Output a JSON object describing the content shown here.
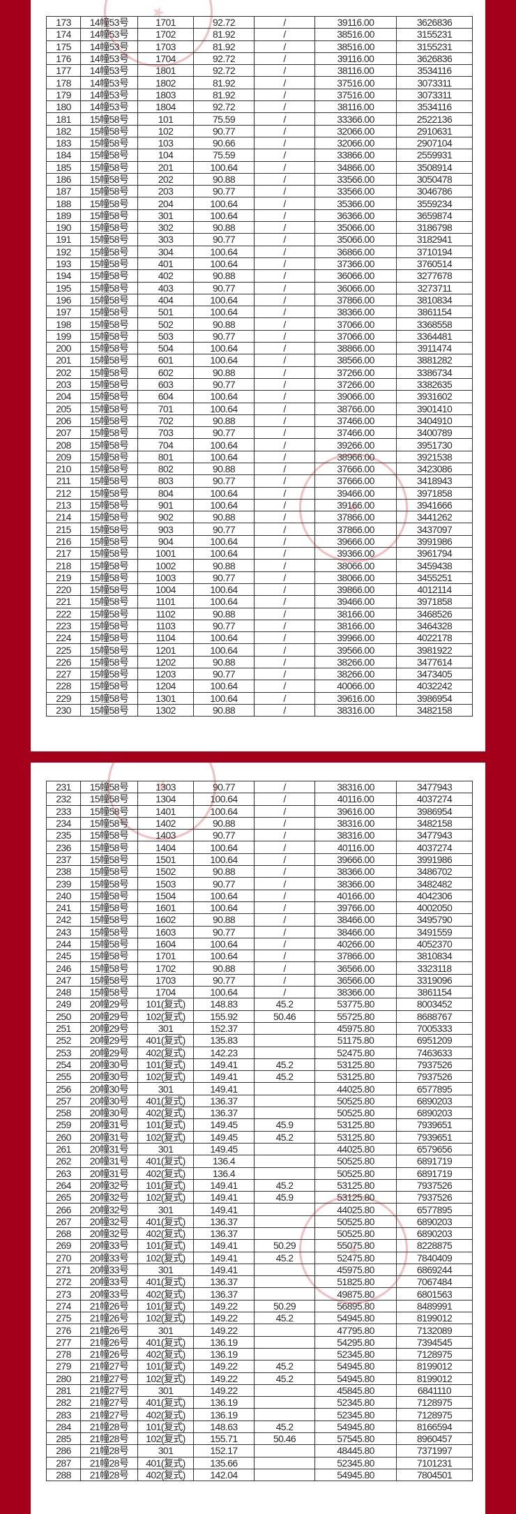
{
  "colors": {
    "background": "#a5001b",
    "page": "#ffffff",
    "stamp": "#d74650"
  },
  "pages": [
    {
      "rows": [
        [
          "173",
          "14幢53号",
          "1701",
          "92.72",
          "/",
          "39116.00",
          "3626836"
        ],
        [
          "174",
          "14幢53号",
          "1702",
          "81.92",
          "/",
          "38516.00",
          "3155231"
        ],
        [
          "175",
          "14幢53号",
          "1703",
          "81.92",
          "/",
          "38516.00",
          "3155231"
        ],
        [
          "176",
          "14幢53号",
          "1704",
          "92.72",
          "/",
          "39116.00",
          "3626836"
        ],
        [
          "177",
          "14幢53号",
          "1801",
          "92.72",
          "/",
          "38116.00",
          "3534116"
        ],
        [
          "178",
          "14幢53号",
          "1802",
          "81.92",
          "/",
          "37516.00",
          "3073311"
        ],
        [
          "179",
          "14幢53号",
          "1803",
          "81.92",
          "/",
          "37516.00",
          "3073311"
        ],
        [
          "180",
          "14幢53号",
          "1804",
          "92.72",
          "/",
          "38116.00",
          "3534116"
        ],
        [
          "181",
          "15幢58号",
          "101",
          "75.59",
          "/",
          "33366.00",
          "2522136"
        ],
        [
          "182",
          "15幢58号",
          "102",
          "90.77",
          "/",
          "32066.00",
          "2910631"
        ],
        [
          "183",
          "15幢58号",
          "103",
          "90.66",
          "/",
          "32066.00",
          "2907104"
        ],
        [
          "184",
          "15幢58号",
          "104",
          "75.59",
          "/",
          "33866.00",
          "2559931"
        ],
        [
          "185",
          "15幢58号",
          "201",
          "100.64",
          "/",
          "34866.00",
          "3508914"
        ],
        [
          "186",
          "15幢58号",
          "202",
          "90.88",
          "/",
          "33566.00",
          "3050478"
        ],
        [
          "187",
          "15幢58号",
          "203",
          "90.77",
          "/",
          "33566.00",
          "3046786"
        ],
        [
          "188",
          "15幢58号",
          "204",
          "100.64",
          "/",
          "35366.00",
          "3559234"
        ],
        [
          "189",
          "15幢58号",
          "301",
          "100.64",
          "/",
          "36366.00",
          "3659874"
        ],
        [
          "190",
          "15幢58号",
          "302",
          "90.88",
          "/",
          "35066.00",
          "3186798"
        ],
        [
          "191",
          "15幢58号",
          "303",
          "90.77",
          "/",
          "35066.00",
          "3182941"
        ],
        [
          "192",
          "15幢58号",
          "304",
          "100.64",
          "/",
          "36866.00",
          "3710194"
        ],
        [
          "193",
          "15幢58号",
          "401",
          "100.64",
          "/",
          "37366.00",
          "3760514"
        ],
        [
          "194",
          "15幢58号",
          "402",
          "90.88",
          "/",
          "36066.00",
          "3277678"
        ],
        [
          "195",
          "15幢58号",
          "403",
          "90.77",
          "/",
          "36066.00",
          "3273711"
        ],
        [
          "196",
          "15幢58号",
          "404",
          "100.64",
          "/",
          "37866.00",
          "3810834"
        ],
        [
          "197",
          "15幢58号",
          "501",
          "100.64",
          "/",
          "38366.00",
          "3861154"
        ],
        [
          "198",
          "15幢58号",
          "502",
          "90.88",
          "/",
          "37066.00",
          "3368558"
        ],
        [
          "199",
          "15幢58号",
          "503",
          "90.77",
          "/",
          "37066.00",
          "3364481"
        ],
        [
          "200",
          "15幢58号",
          "504",
          "100.64",
          "/",
          "38866.00",
          "3911474"
        ],
        [
          "201",
          "15幢58号",
          "601",
          "100.64",
          "/",
          "38566.00",
          "3881282"
        ],
        [
          "202",
          "15幢58号",
          "602",
          "90.88",
          "/",
          "37266.00",
          "3386734"
        ],
        [
          "203",
          "15幢58号",
          "603",
          "90.77",
          "/",
          "37266.00",
          "3382635"
        ],
        [
          "204",
          "15幢58号",
          "604",
          "100.64",
          "/",
          "39066.00",
          "3931602"
        ],
        [
          "205",
          "15幢58号",
          "701",
          "100.64",
          "/",
          "38766.00",
          "3901410"
        ],
        [
          "206",
          "15幢58号",
          "702",
          "90.88",
          "/",
          "37466.00",
          "3404910"
        ],
        [
          "207",
          "15幢58号",
          "703",
          "90.77",
          "/",
          "37466.00",
          "3400789"
        ],
        [
          "208",
          "15幢58号",
          "704",
          "100.64",
          "/",
          "39266.00",
          "3951730"
        ],
        [
          "209",
          "15幢58号",
          "801",
          "100.64",
          "/",
          "38966.00",
          "3921538"
        ],
        [
          "210",
          "15幢58号",
          "802",
          "90.88",
          "/",
          "37666.00",
          "3423086"
        ],
        [
          "211",
          "15幢58号",
          "803",
          "90.77",
          "/",
          "37666.00",
          "3418943"
        ],
        [
          "212",
          "15幢58号",
          "804",
          "100.64",
          "/",
          "39466.00",
          "3971858"
        ],
        [
          "213",
          "15幢58号",
          "901",
          "100.64",
          "/",
          "39166.00",
          "3941666"
        ],
        [
          "214",
          "15幢58号",
          "902",
          "90.88",
          "/",
          "37866.00",
          "3441262"
        ],
        [
          "215",
          "15幢58号",
          "903",
          "90.77",
          "/",
          "37866.00",
          "3437097"
        ],
        [
          "216",
          "15幢58号",
          "904",
          "100.64",
          "/",
          "39666.00",
          "3991986"
        ],
        [
          "217",
          "15幢58号",
          "1001",
          "100.64",
          "/",
          "39366.00",
          "3961794"
        ],
        [
          "218",
          "15幢58号",
          "1002",
          "90.88",
          "/",
          "38066.00",
          "3459438"
        ],
        [
          "219",
          "15幢58号",
          "1003",
          "90.77",
          "/",
          "38066.00",
          "3455251"
        ],
        [
          "220",
          "15幢58号",
          "1004",
          "100.64",
          "/",
          "39866.00",
          "4012114"
        ],
        [
          "221",
          "15幢58号",
          "1101",
          "100.64",
          "/",
          "39466.00",
          "3971858"
        ],
        [
          "222",
          "15幢58号",
          "1102",
          "90.88",
          "/",
          "38166.00",
          "3468526"
        ],
        [
          "223",
          "15幢58号",
          "1103",
          "90.77",
          "/",
          "38166.00",
          "3464328"
        ],
        [
          "224",
          "15幢58号",
          "1104",
          "100.64",
          "/",
          "39966.00",
          "4022178"
        ],
        [
          "225",
          "15幢58号",
          "1201",
          "100.64",
          "/",
          "39566.00",
          "3981922"
        ],
        [
          "226",
          "15幢58号",
          "1202",
          "90.88",
          "/",
          "38266.00",
          "3477614"
        ],
        [
          "227",
          "15幢58号",
          "1203",
          "90.77",
          "/",
          "38266.00",
          "3473405"
        ],
        [
          "228",
          "15幢58号",
          "1204",
          "100.64",
          "/",
          "40066.00",
          "4032242"
        ],
        [
          "229",
          "15幢58号",
          "1301",
          "100.64",
          "/",
          "39616.00",
          "3986954"
        ],
        [
          "230",
          "15幢58号",
          "1302",
          "90.88",
          "/",
          "38316.00",
          "3482158"
        ]
      ]
    },
    {
      "rows": [
        [
          "231",
          "15幢58号",
          "1303",
          "90.77",
          "/",
          "38316.00",
          "3477943"
        ],
        [
          "232",
          "15幢58号",
          "1304",
          "100.64",
          "/",
          "40116.00",
          "4037274"
        ],
        [
          "233",
          "15幢58号",
          "1401",
          "100.64",
          "/",
          "39616.00",
          "3986954"
        ],
        [
          "234",
          "15幢58号",
          "1402",
          "90.88",
          "/",
          "38316.00",
          "3482158"
        ],
        [
          "235",
          "15幢58号",
          "1403",
          "90.77",
          "/",
          "38316.00",
          "3477943"
        ],
        [
          "236",
          "15幢58号",
          "1404",
          "100.64",
          "/",
          "40116.00",
          "4037274"
        ],
        [
          "237",
          "15幢58号",
          "1501",
          "100.64",
          "/",
          "39666.00",
          "3991986"
        ],
        [
          "238",
          "15幢58号",
          "1502",
          "90.88",
          "/",
          "38366.00",
          "3486702"
        ],
        [
          "239",
          "15幢58号",
          "1503",
          "90.77",
          "/",
          "38366.00",
          "3482482"
        ],
        [
          "240",
          "15幢58号",
          "1504",
          "100.64",
          "/",
          "40166.00",
          "4042306"
        ],
        [
          "241",
          "15幢58号",
          "1601",
          "100.64",
          "/",
          "39766.00",
          "4002050"
        ],
        [
          "242",
          "15幢58号",
          "1602",
          "90.88",
          "/",
          "38466.00",
          "3495790"
        ],
        [
          "243",
          "15幢58号",
          "1603",
          "90.77",
          "/",
          "38466.00",
          "3491559"
        ],
        [
          "244",
          "15幢58号",
          "1604",
          "100.64",
          "/",
          "40266.00",
          "4052370"
        ],
        [
          "245",
          "15幢58号",
          "1701",
          "100.64",
          "/",
          "37866.00",
          "3810834"
        ],
        [
          "246",
          "15幢58号",
          "1702",
          "90.88",
          "/",
          "36566.00",
          "3323118"
        ],
        [
          "247",
          "15幢58号",
          "1703",
          "90.77",
          "/",
          "36566.00",
          "3319096"
        ],
        [
          "248",
          "15幢58号",
          "1704",
          "100.64",
          "/",
          "38366.00",
          "3861154"
        ],
        [
          "249",
          "20幢29号",
          "101(复式)",
          "148.83",
          "45.2",
          "53775.80",
          "8003452"
        ],
        [
          "250",
          "20幢29号",
          "102(复式)",
          "155.92",
          "50.46",
          "55725.80",
          "8688767"
        ],
        [
          "251",
          "20幢29号",
          "301",
          "152.37",
          "",
          "45975.80",
          "7005333"
        ],
        [
          "252",
          "20幢29号",
          "401(复式)",
          "135.83",
          "",
          "51175.80",
          "6951209"
        ],
        [
          "253",
          "20幢29号",
          "402(复式)",
          "142.23",
          "",
          "52475.80",
          "7463633"
        ],
        [
          "254",
          "20幢30号",
          "101(复式)",
          "149.41",
          "45.2",
          "53125.80",
          "7937526"
        ],
        [
          "255",
          "20幢30号",
          "102(复式)",
          "149.41",
          "45.2",
          "53125.80",
          "7937526"
        ],
        [
          "256",
          "20幢30号",
          "301",
          "149.41",
          "",
          "44025.80",
          "6577895"
        ],
        [
          "257",
          "20幢30号",
          "401(复式)",
          "136.37",
          "",
          "50525.80",
          "6890203"
        ],
        [
          "258",
          "20幢30号",
          "402(复式)",
          "136.37",
          "",
          "50525.80",
          "6890203"
        ],
        [
          "259",
          "20幢31号",
          "101(复式)",
          "149.45",
          "45.9",
          "53125.80",
          "7939651"
        ],
        [
          "260",
          "20幢31号",
          "102(复式)",
          "149.45",
          "45.2",
          "53125.80",
          "7939651"
        ],
        [
          "261",
          "20幢31号",
          "301",
          "149.45",
          "",
          "44025.80",
          "6579656"
        ],
        [
          "262",
          "20幢31号",
          "401(复式)",
          "136.4",
          "",
          "50525.80",
          "6891719"
        ],
        [
          "263",
          "20幢31号",
          "402(复式)",
          "136.4",
          "",
          "50525.80",
          "6891719"
        ],
        [
          "264",
          "20幢32号",
          "101(复式)",
          "149.41",
          "45.2",
          "53125.80",
          "7937526"
        ],
        [
          "265",
          "20幢32号",
          "102(复式)",
          "149.41",
          "45.9",
          "53125.80",
          "7937526"
        ],
        [
          "266",
          "20幢32号",
          "301",
          "149.41",
          "",
          "44025.80",
          "6577895"
        ],
        [
          "267",
          "20幢32号",
          "401(复式)",
          "136.37",
          "",
          "50525.80",
          "6890203"
        ],
        [
          "268",
          "20幢32号",
          "402(复式)",
          "136.37",
          "",
          "50525.80",
          "6890203"
        ],
        [
          "269",
          "20幢33号",
          "101(复式)",
          "149.41",
          "50.29",
          "55075.80",
          "8228875"
        ],
        [
          "270",
          "20幢33号",
          "102(复式)",
          "149.41",
          "45.2",
          "52475.80",
          "7840409"
        ],
        [
          "271",
          "20幢33号",
          "301",
          "149.41",
          "",
          "45975.80",
          "6869244"
        ],
        [
          "272",
          "20幢33号",
          "401(复式)",
          "136.37",
          "",
          "51825.80",
          "7067484"
        ],
        [
          "273",
          "20幢33号",
          "402(复式)",
          "136.37",
          "",
          "49875.80",
          "6801563"
        ],
        [
          "274",
          "21幢26号",
          "101(复式)",
          "149.22",
          "50.29",
          "56895.80",
          "8489991"
        ],
        [
          "275",
          "21幢26号",
          "102(复式)",
          "149.22",
          "45.2",
          "54945.80",
          "8199012"
        ],
        [
          "276",
          "21幢26号",
          "301",
          "149.22",
          "",
          "47795.80",
          "7132089"
        ],
        [
          "277",
          "21幢26号",
          "401(复式)",
          "136.19",
          "",
          "54295.80",
          "7394545"
        ],
        [
          "278",
          "21幢26号",
          "402(复式)",
          "136.19",
          "",
          "52345.80",
          "7128975"
        ],
        [
          "279",
          "21幢27号",
          "101(复式)",
          "149.22",
          "45.2",
          "54945.80",
          "8199012"
        ],
        [
          "280",
          "21幢27号",
          "102(复式)",
          "149.22",
          "45.2",
          "54945.80",
          "8199012"
        ],
        [
          "281",
          "21幢27号",
          "301",
          "149.22",
          "",
          "45845.80",
          "6841110"
        ],
        [
          "282",
          "21幢27号",
          "401(复式)",
          "136.19",
          "",
          "52345.80",
          "7128975"
        ],
        [
          "283",
          "21幢27号",
          "402(复式)",
          "136.19",
          "",
          "52345.80",
          "7128975"
        ],
        [
          "284",
          "21幢28号",
          "101(复式)",
          "148.63",
          "45.2",
          "54945.80",
          "8166594"
        ],
        [
          "285",
          "21幢28号",
          "102(复式)",
          "155.71",
          "50.46",
          "57545.80",
          "8960457"
        ],
        [
          "286",
          "21幢28号",
          "301",
          "152.17",
          "",
          "48445.80",
          "7371997"
        ],
        [
          "287",
          "21幢28号",
          "401(复式)",
          "135.66",
          "",
          "52345.80",
          "7101231"
        ],
        [
          "288",
          "21幢28号",
          "402(复式)",
          "142.04",
          "",
          "54945.80",
          "7804501"
        ]
      ]
    }
  ]
}
